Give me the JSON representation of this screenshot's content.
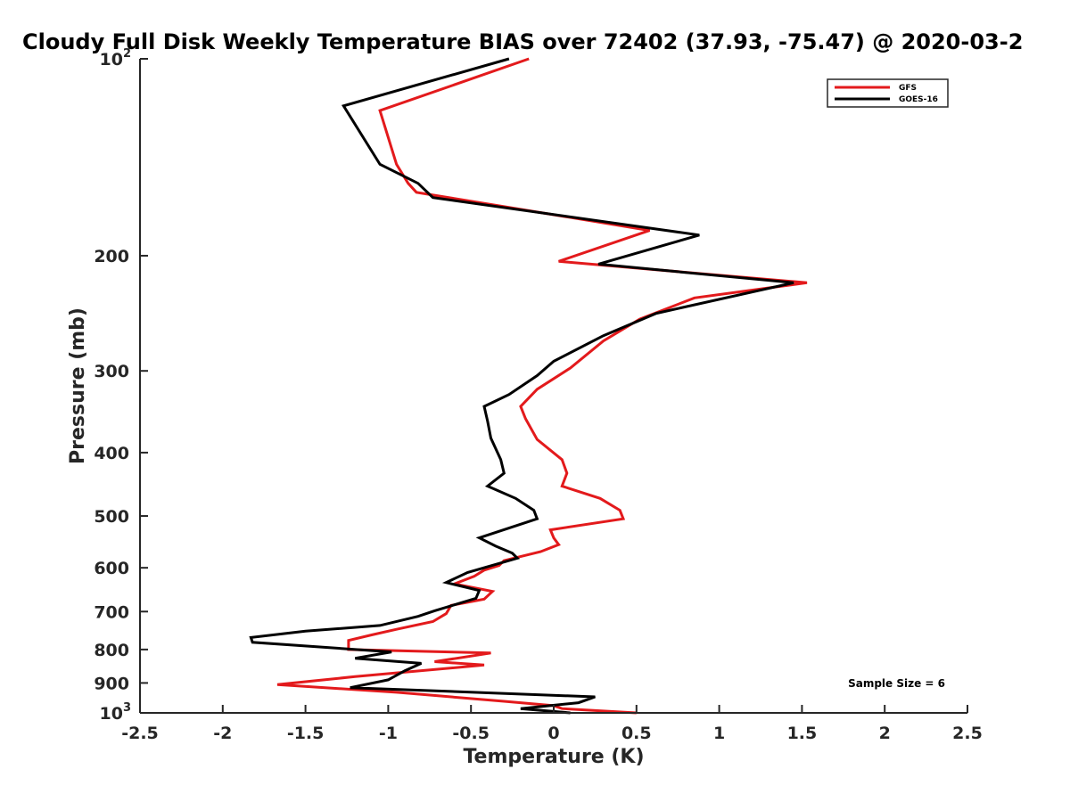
{
  "chart_data": {
    "type": "line",
    "title": "Cloudy Full Disk Weekly Temperature BIAS over 72402 (37.93, -75.47) @ 2020-03-2",
    "xlabel": "Temperature (K)",
    "ylabel": "Pressure (mb)",
    "xlim": [
      -2.5,
      2.5
    ],
    "ylim": [
      100,
      1000
    ],
    "y_scale": "log",
    "y_reversed": true,
    "x_ticks": [
      "-2.5",
      "-2",
      "-1.5",
      "-1",
      "-0.5",
      "0",
      "0.5",
      "1",
      "1.5",
      "2",
      "2.5"
    ],
    "y_ticks": [
      {
        "value": 100,
        "base": "10",
        "exp": "2"
      },
      {
        "value": 200,
        "label": "200"
      },
      {
        "value": 300,
        "label": "300"
      },
      {
        "value": 400,
        "label": "400"
      },
      {
        "value": 500,
        "label": "500"
      },
      {
        "value": 600,
        "label": "600"
      },
      {
        "value": 700,
        "label": "700"
      },
      {
        "value": 800,
        "label": "800"
      },
      {
        "value": 900,
        "label": "900"
      },
      {
        "value": 1000,
        "base": "10",
        "exp": "3"
      }
    ],
    "grid": false,
    "legend_position": "top-right",
    "annotation": "Sample Size = 6",
    "series": [
      {
        "name": "GFS",
        "color": "#e31a1c",
        "x": [
          0.5,
          0.05,
          0.0,
          -0.3,
          -0.95,
          -1.67,
          -1.2,
          -0.42,
          -0.72,
          -0.38,
          -1.24,
          -1.24,
          -1.1,
          -0.95,
          -0.73,
          -0.65,
          -0.62,
          -0.42,
          -0.37,
          -0.6,
          -0.48,
          -0.42,
          -0.33,
          -0.3,
          -0.08,
          0.03,
          0.0,
          -0.02,
          0.42,
          0.4,
          0.28,
          0.05,
          0.08,
          0.05,
          -0.1,
          -0.17,
          -0.2,
          -0.1,
          0.1,
          0.3,
          0.52,
          0.85,
          1.53,
          0.03,
          0.58,
          -0.83,
          -0.88,
          -0.95,
          -1.05,
          -0.15
        ],
        "y": [
          1000,
          985,
          975,
          960,
          930,
          905,
          880,
          845,
          835,
          810,
          800,
          775,
          760,
          745,
          725,
          705,
          685,
          670,
          652,
          635,
          618,
          605,
          595,
          585,
          567,
          553,
          540,
          525,
          505,
          490,
          470,
          450,
          430,
          410,
          382,
          355,
          340,
          320,
          297,
          270,
          250,
          232,
          220,
          204,
          183,
          160,
          155,
          145,
          120,
          100
        ]
      },
      {
        "name": "GOES-16",
        "color": "#000000",
        "x": [
          0.1,
          -0.2,
          0.15,
          0.25,
          -1.23,
          -1.0,
          -0.9,
          -0.8,
          -1.2,
          -0.98,
          -1.82,
          -1.83,
          -1.5,
          -1.05,
          -0.82,
          -0.72,
          -0.47,
          -0.45,
          -0.65,
          -0.52,
          -0.22,
          -0.25,
          -0.35,
          -0.45,
          -0.1,
          -0.12,
          -0.23,
          -0.4,
          -0.3,
          -0.32,
          -0.38,
          -0.4,
          -0.42,
          -0.27,
          -0.1,
          0.0,
          0.3,
          0.62,
          1.45,
          0.27,
          0.88,
          -0.73,
          -0.82,
          -1.05,
          -1.27,
          -0.27
        ],
        "y": [
          1000,
          985,
          965,
          945,
          915,
          890,
          862,
          840,
          825,
          807,
          780,
          767,
          750,
          735,
          712,
          698,
          668,
          650,
          632,
          610,
          580,
          570,
          556,
          540,
          505,
          490,
          470,
          450,
          430,
          410,
          380,
          358,
          340,
          326,
          305,
          290,
          265,
          245,
          220,
          206,
          186,
          163,
          155,
          145,
          118,
          100
        ]
      }
    ]
  }
}
